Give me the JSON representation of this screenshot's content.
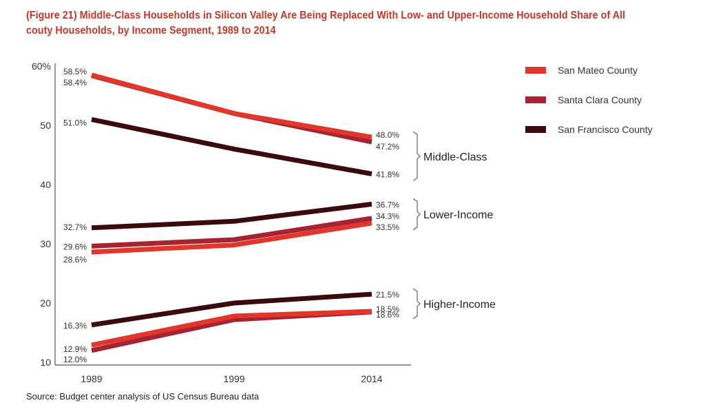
{
  "title": "(Figure 21) Middle-Class Households in Silicon Valley Are Being Replaced With Low- and Upper-Income Household Share of All couty Households, by Income Segment, 1989 to 2014",
  "source": "Source: Budget center analysis of US Census Bureau data",
  "chart_data": {
    "type": "line",
    "title": "(Figure 21) Middle-Class Households in Silicon Valley Are Being Replaced With Low- and Upper-Income Household Share of All couty Households, by Income Segment, 1989 to 2014",
    "x": [
      1989,
      1999,
      2014
    ],
    "x_tick_labels": [
      "1989",
      "1999",
      "2014"
    ],
    "ylim": [
      10,
      60
    ],
    "y_ticks": [
      10,
      20,
      30,
      40,
      50,
      60
    ],
    "y_tick_labels": [
      "10",
      "20",
      "30",
      "40",
      "50",
      "60%"
    ],
    "grid": false,
    "legend_position": "top-right",
    "segments": [
      {
        "name": "Middle-Class",
        "series": [
          {
            "name": "San Mateo County",
            "color": "#e0362c",
            "values": [
              58.5,
              52.0,
              48.0
            ],
            "start_label": "58.5%",
            "end_label": "48.0%"
          },
          {
            "name": "Santa Clara County",
            "color": "#a6232f",
            "values": [
              58.4,
              52.0,
              47.2
            ],
            "start_label": "58.4%",
            "end_label": "47.2%"
          },
          {
            "name": "San Francisco County",
            "color": "#3a0a0e",
            "values": [
              51.0,
              46.0,
              41.8
            ],
            "start_label": "51.0%",
            "end_label": "41.8%"
          }
        ]
      },
      {
        "name": "Lower-Income",
        "series": [
          {
            "name": "San Mateo County",
            "color": "#e0362c",
            "values": [
              28.6,
              29.8,
              33.5
            ],
            "start_label": "28.6%",
            "end_label": "33.5%"
          },
          {
            "name": "Santa Clara County",
            "color": "#a6232f",
            "values": [
              29.6,
              30.7,
              34.3
            ],
            "start_label": "29.6%",
            "end_label": "34.3%"
          },
          {
            "name": "San Francisco County",
            "color": "#3a0a0e",
            "values": [
              32.7,
              33.8,
              36.7
            ],
            "start_label": "32.7%",
            "end_label": "36.7%"
          }
        ]
      },
      {
        "name": "Higher-Income",
        "series": [
          {
            "name": "San Mateo County",
            "color": "#e0362c",
            "values": [
              12.9,
              17.8,
              18.6
            ],
            "start_label": "12.9%",
            "end_label": "18.6%"
          },
          {
            "name": "Santa Clara County",
            "color": "#a6232f",
            "values": [
              12.0,
              17.2,
              18.5
            ],
            "start_label": "12.0%",
            "end_label": "18.5%"
          },
          {
            "name": "San Francisco County",
            "color": "#3a0a0e",
            "values": [
              16.3,
              20.0,
              21.5
            ],
            "start_label": "16.3%",
            "end_label": "21.5%"
          }
        ]
      }
    ],
    "legend": [
      {
        "name": "San Mateo County",
        "color": "#e0362c"
      },
      {
        "name": "Santa Clara County",
        "color": "#a6232f"
      },
      {
        "name": "San Francisco County",
        "color": "#3a0a0e"
      }
    ]
  }
}
